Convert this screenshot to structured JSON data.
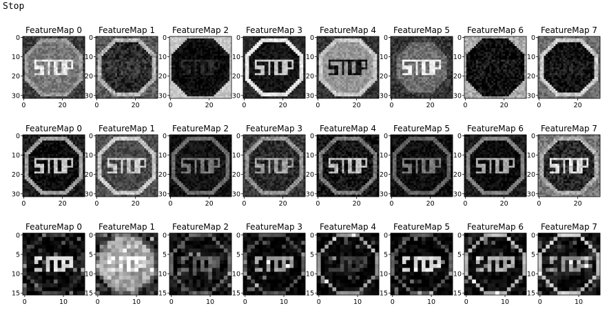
{
  "label": "Stop",
  "rows": [
    {
      "size": 32,
      "yticks": [
        "0",
        "10",
        "20",
        "30"
      ],
      "xticks": [
        "0",
        "20"
      ],
      "titles": [
        "FeatureMap 0",
        "FeatureMap 1",
        "FeatureMap 2",
        "FeatureMap 3",
        "FeatureMap 4",
        "FeatureMap 5",
        "FeatureMap 6",
        "FeatureMap 7"
      ],
      "panels": [
        {
          "bg": 60,
          "sign": 120,
          "text": 230,
          "border": 150,
          "noise": 60
        },
        {
          "bg": 90,
          "sign": 40,
          "text": 60,
          "border": 180,
          "noise": 70
        },
        {
          "bg": 200,
          "sign": 10,
          "text": 40,
          "border": 20,
          "noise": 40
        },
        {
          "bg": 40,
          "sign": 20,
          "text": 200,
          "border": 230,
          "noise": 40
        },
        {
          "bg": 50,
          "sign": 150,
          "text": 20,
          "border": 200,
          "noise": 50
        },
        {
          "bg": 50,
          "sign": 110,
          "text": 240,
          "border": 60,
          "noise": 60
        },
        {
          "bg": 170,
          "sign": 10,
          "text": 30,
          "border": 10,
          "noise": 70
        },
        {
          "bg": 110,
          "sign": 15,
          "text": 30,
          "border": 200,
          "noise": 60
        }
      ]
    },
    {
      "size": 32,
      "yticks": [
        "0",
        "10",
        "20",
        "30"
      ],
      "xticks": [
        "0",
        "20"
      ],
      "titles": [
        "FeatureMap 0",
        "FeatureMap 1",
        "FeatureMap 2",
        "FeatureMap 3",
        "FeatureMap 4",
        "FeatureMap 5",
        "FeatureMap 6",
        "FeatureMap 7"
      ],
      "panels": [
        {
          "bg": 30,
          "sign": 10,
          "text": 200,
          "border": 160,
          "noise": 50
        },
        {
          "bg": 80,
          "sign": 70,
          "text": 200,
          "border": 200,
          "noise": 60
        },
        {
          "bg": 15,
          "sign": 20,
          "text": 120,
          "border": 110,
          "noise": 40
        },
        {
          "bg": 60,
          "sign": 40,
          "text": 160,
          "border": 150,
          "noise": 60
        },
        {
          "bg": 20,
          "sign": 20,
          "text": 190,
          "border": 120,
          "noise": 60
        },
        {
          "bg": 15,
          "sign": 15,
          "text": 120,
          "border": 100,
          "noise": 40
        },
        {
          "bg": 30,
          "sign": 10,
          "text": 170,
          "border": 130,
          "noise": 40
        },
        {
          "bg": 120,
          "sign": 40,
          "text": 220,
          "border": 170,
          "noise": 70
        }
      ]
    },
    {
      "size": 16,
      "yticks": [
        "0",
        "5",
        "10",
        "15"
      ],
      "xticks": [
        "0",
        "10"
      ],
      "titles": [
        "FeatureMap 0",
        "FeatureMap 1",
        "FeatureMap 2",
        "FeatureMap 3",
        "FeatureMap 4",
        "FeatureMap 5",
        "FeatureMap 6",
        "FeatureMap 7"
      ],
      "panels": [
        {
          "bg": 10,
          "sign": 10,
          "text": 220,
          "border": 60,
          "noise": 50
        },
        {
          "bg": 40,
          "sign": 160,
          "text": 240,
          "border": 100,
          "noise": 80
        },
        {
          "bg": 20,
          "sign": 15,
          "text": 100,
          "border": 90,
          "noise": 50
        },
        {
          "bg": 5,
          "sign": 5,
          "text": 160,
          "border": 80,
          "noise": 35
        },
        {
          "bg": 10,
          "sign": 10,
          "text": 60,
          "border": 150,
          "noise": 40
        },
        {
          "bg": 5,
          "sign": 5,
          "text": 220,
          "border": 90,
          "noise": 40
        },
        {
          "bg": 15,
          "sign": 10,
          "text": 170,
          "border": 180,
          "noise": 40
        },
        {
          "bg": 20,
          "sign": 20,
          "text": 150,
          "border": 200,
          "noise": 50
        }
      ]
    }
  ]
}
